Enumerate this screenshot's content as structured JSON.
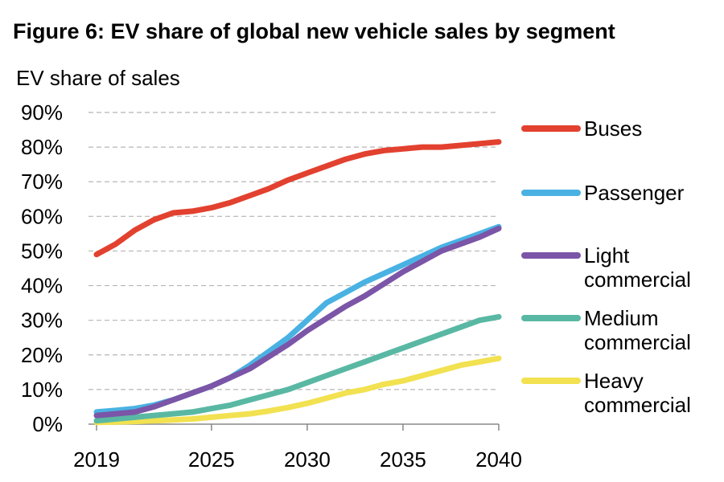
{
  "chart_data": {
    "type": "line",
    "title": "Figure 6: EV share of global new vehicle sales by segment",
    "ylabel": "EV share of sales",
    "xlabel": "",
    "xlim": [
      2019,
      2040
    ],
    "ylim": [
      0,
      90
    ],
    "xticks": [
      "2019",
      "2025",
      "2030",
      "2035",
      "2040"
    ],
    "yticks": [
      "0%",
      "10%",
      "20%",
      "30%",
      "40%",
      "50%",
      "60%",
      "70%",
      "80%",
      "90%"
    ],
    "grid": "horizontal dashed",
    "legend_position": "right",
    "x": [
      2019,
      2020,
      2021,
      2022,
      2023,
      2024,
      2025,
      2026,
      2027,
      2028,
      2029,
      2030,
      2031,
      2032,
      2033,
      2034,
      2035,
      2036,
      2037,
      2038,
      2039,
      2040
    ],
    "series": [
      {
        "name": "Buses",
        "color": "#e2412f",
        "values": [
          49,
          52,
          56,
          59,
          61,
          61.5,
          62.5,
          64,
          66,
          68,
          70.5,
          72.5,
          74.5,
          76.5,
          78,
          79,
          79.5,
          80,
          80,
          80.5,
          81,
          81.5
        ]
      },
      {
        "name": "Passenger",
        "color": "#49b2e3",
        "values": [
          3.5,
          4,
          4.5,
          5.5,
          7,
          9,
          11,
          13.5,
          17,
          21,
          25,
          30,
          35,
          38,
          41,
          43.5,
          46,
          48.5,
          51,
          53,
          55,
          57
        ]
      },
      {
        "name": "Light commercial",
        "color": "#7b55a7",
        "values": [
          2.5,
          3,
          3.5,
          5,
          7,
          9,
          11,
          13.5,
          16,
          19.5,
          23,
          27,
          30.5,
          34,
          37,
          40.5,
          44,
          47,
          50,
          52,
          54,
          56.5
        ]
      },
      {
        "name": "Medium commercial",
        "color": "#59b8a3",
        "values": [
          1,
          1.5,
          2,
          2.5,
          3,
          3.5,
          4.5,
          5.5,
          7,
          8.5,
          10,
          12,
          14,
          16,
          18,
          20,
          22,
          24,
          26,
          28,
          30,
          31
        ]
      },
      {
        "name": "Heavy commercial",
        "color": "#f2e150",
        "values": [
          0.5,
          0.6,
          0.8,
          1,
          1.2,
          1.5,
          2,
          2.5,
          3,
          3.8,
          4.8,
          6,
          7.5,
          9,
          10,
          11.5,
          12.5,
          14,
          15.5,
          17,
          18,
          19
        ]
      }
    ],
    "legend": [
      {
        "lines": [
          "Buses"
        ]
      },
      {
        "lines": [
          "Passenger"
        ]
      },
      {
        "lines": [
          "Light",
          "commercial"
        ]
      },
      {
        "lines": [
          "Medium",
          "commercial"
        ]
      },
      {
        "lines": [
          "Heavy",
          "commercial"
        ]
      }
    ]
  }
}
